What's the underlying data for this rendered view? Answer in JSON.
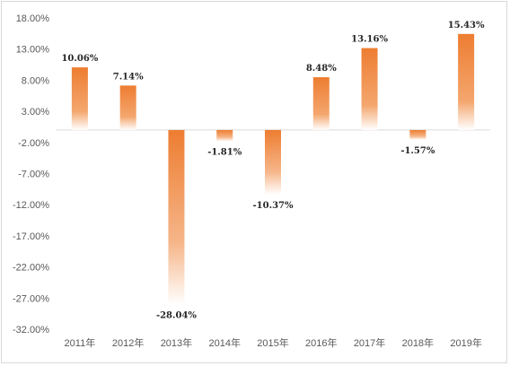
{
  "chart_data": {
    "type": "bar",
    "categories": [
      "2011年",
      "2012年",
      "2013年",
      "2014年",
      "2015年",
      "2016年",
      "2017年",
      "2018年",
      "2019年"
    ],
    "values": [
      10.06,
      7.14,
      -28.04,
      -1.81,
      -10.37,
      8.48,
      13.16,
      -1.57,
      15.43
    ],
    "data_labels": [
      "10.06%",
      "7.14%",
      "-28.04%",
      "-1.81%",
      "-10.37%",
      "8.48%",
      "13.16%",
      "-1.57%",
      "15.43%"
    ],
    "y_ticks": [
      18,
      13,
      8,
      3,
      -2,
      -7,
      -12,
      -17,
      -22,
      -27,
      -32
    ],
    "y_tick_labels": [
      "18.00%",
      "13.00%",
      "8.00%",
      "3.00%",
      "-2.00%",
      "-7.00%",
      "-12.00%",
      "-17.00%",
      "-22.00%",
      "-27.00%",
      "-32.00%"
    ],
    "ylim": [
      -32,
      18
    ],
    "grid": false,
    "legend": "none",
    "bar_color": "#ED7D31",
    "title": "",
    "xlabel": "",
    "ylabel": ""
  }
}
